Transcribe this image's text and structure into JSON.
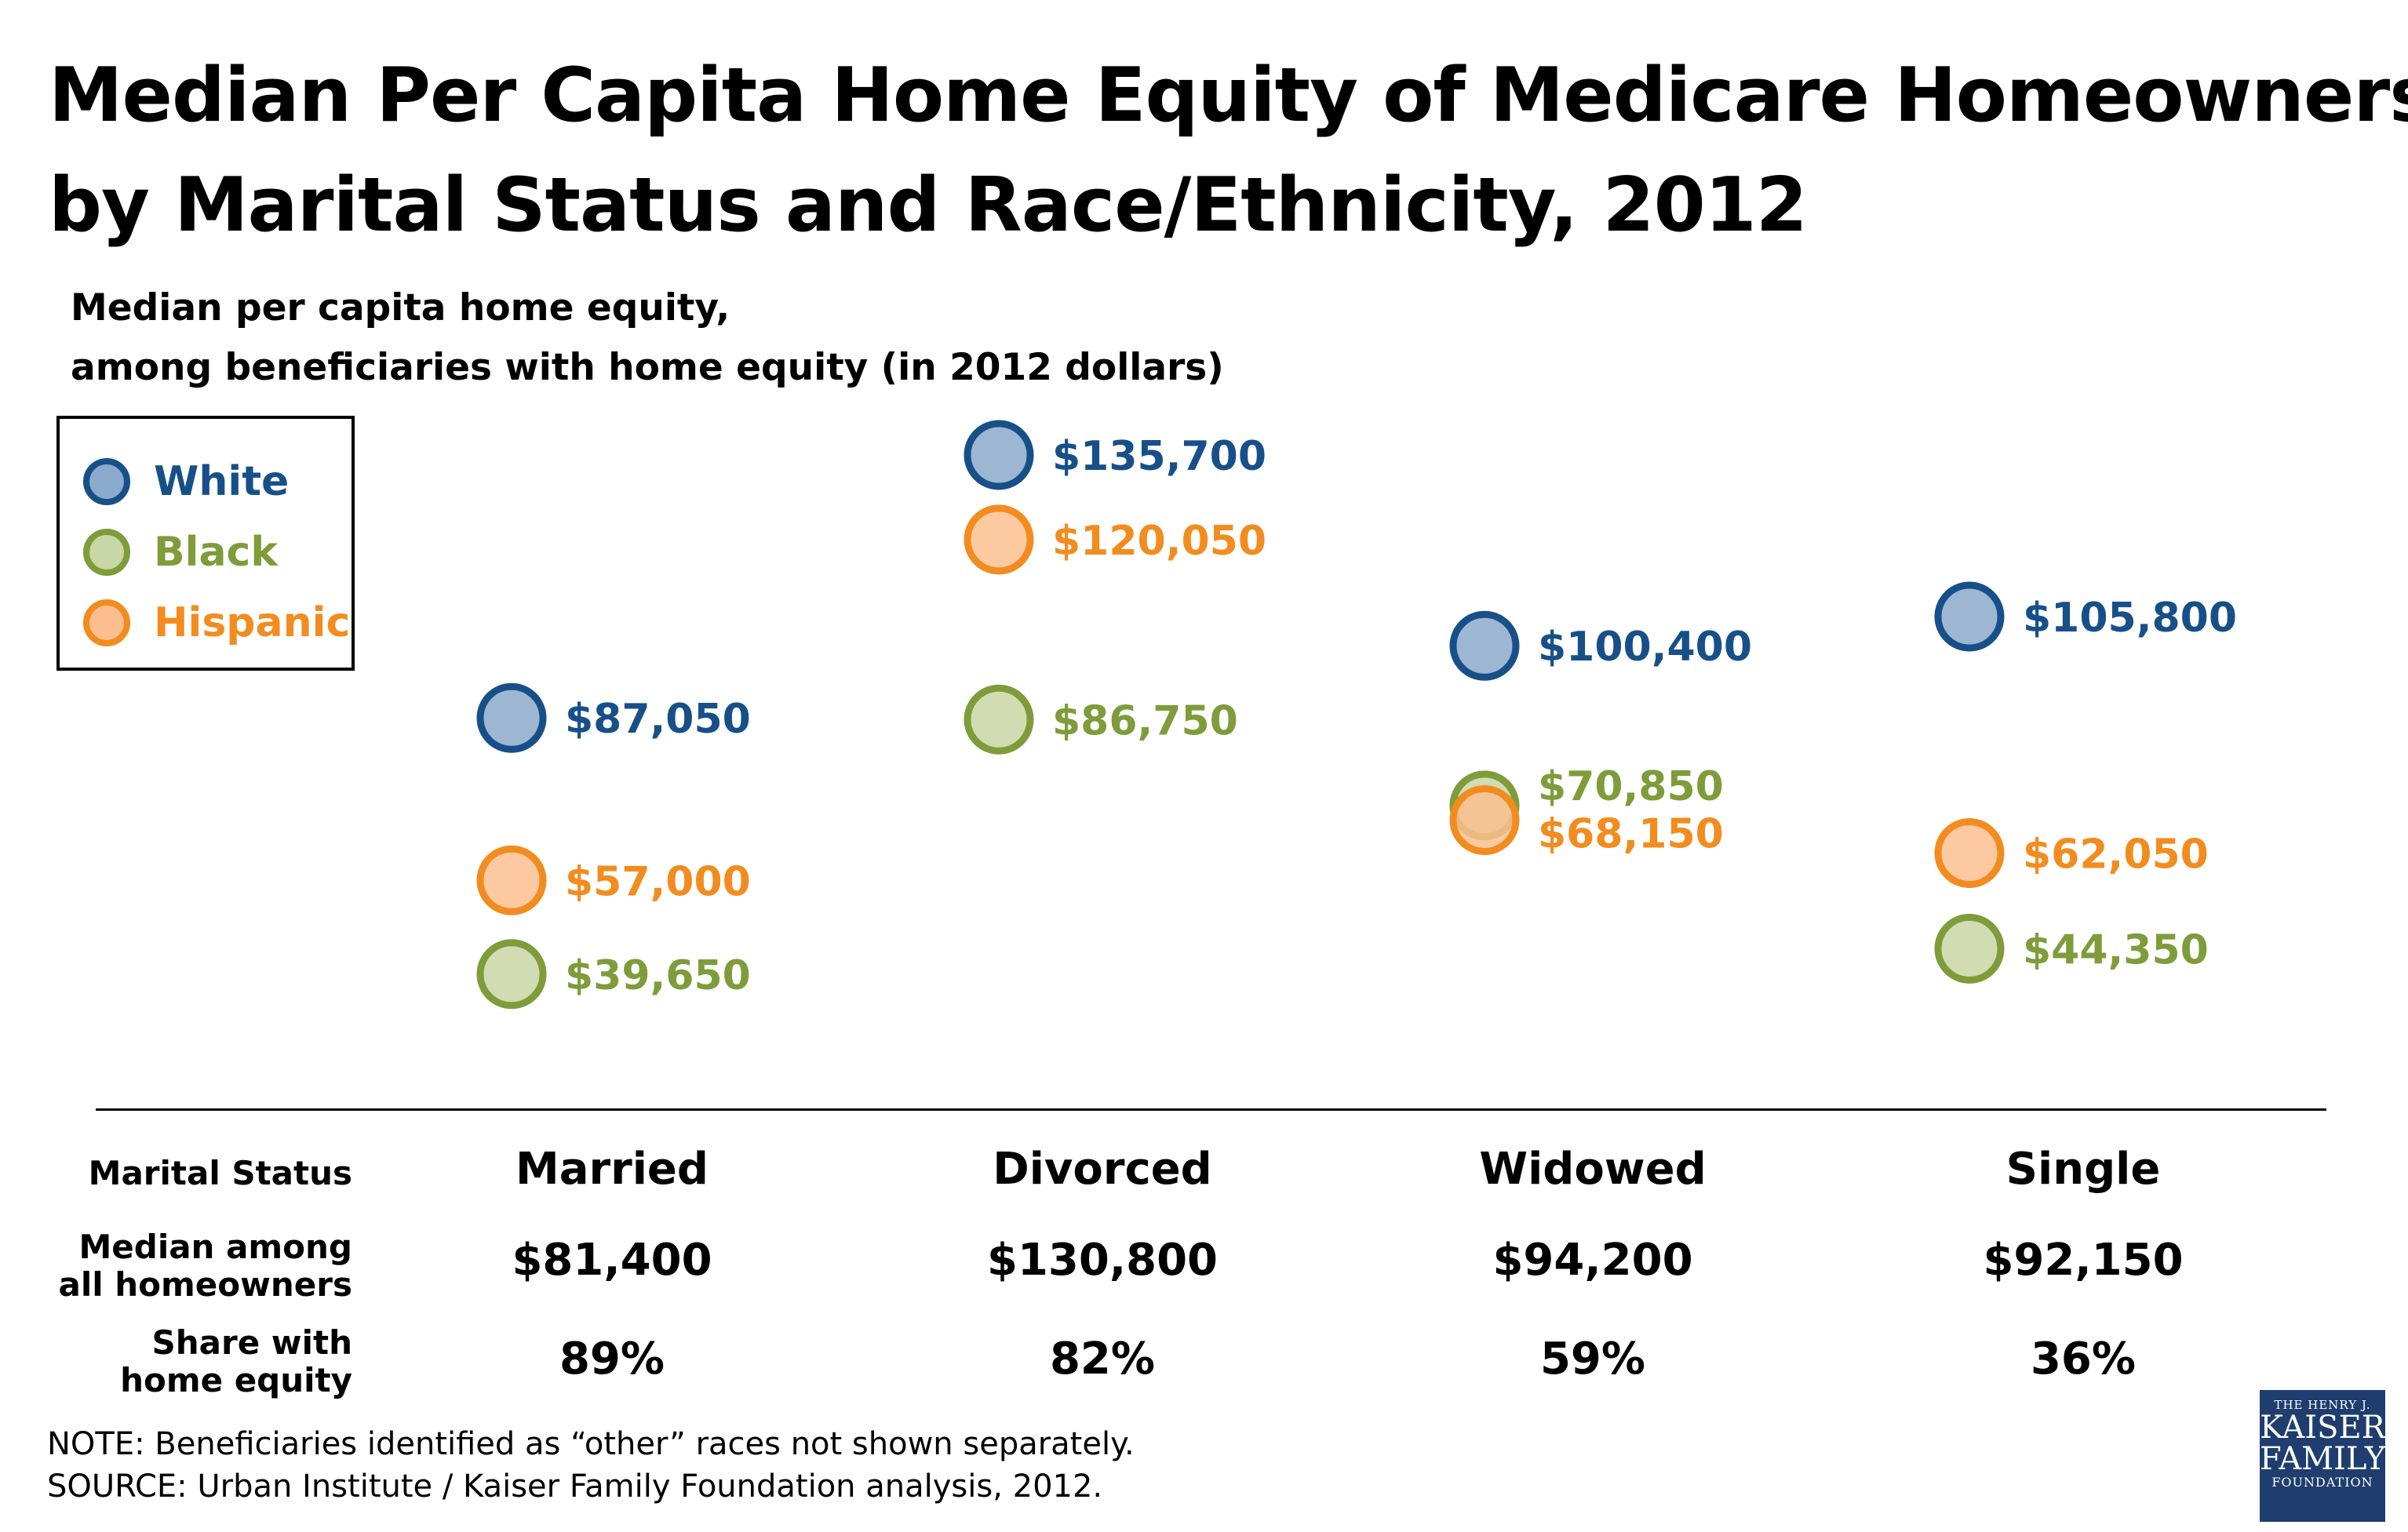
{
  "title_line1": "Median Per Capita Home Equity of Medicare Homeowners,",
  "title_line2": "by Marital Status and Race/Ethnicity, 2012",
  "subtitle_line1": "Median per capita home equity,",
  "subtitle_line2": "among beneficiaries with home equity (in 2012 dollars)",
  "legend": [
    {
      "name": "White",
      "stroke": "#175089",
      "fill": "#8caacb"
    },
    {
      "name": "Black",
      "stroke": "#7e9c3a",
      "fill": "#c9d6a6"
    },
    {
      "name": "Hispanic",
      "stroke": "#f28c1f",
      "fill": "#fbbf8f"
    }
  ],
  "chart_data": {
    "type": "scatter",
    "categories": [
      "Married",
      "Divorced",
      "Widowed",
      "Single"
    ],
    "series": [
      {
        "name": "White",
        "values": [
          87050,
          135700,
          100400,
          105800
        ],
        "labels": [
          "$87,050",
          "$135,700",
          "$100,400",
          "$105,800"
        ]
      },
      {
        "name": "Black",
        "values": [
          39650,
          86750,
          70850,
          44350
        ],
        "labels": [
          "$39,650",
          "$86,750",
          "$70,850",
          "$44,350"
        ]
      },
      {
        "name": "Hispanic",
        "values": [
          57000,
          120050,
          68150,
          62050
        ],
        "labels": [
          "$57,000",
          "$120,050",
          "$68,150",
          "$62,050"
        ]
      }
    ],
    "grid": false,
    "legend_position": "top-left"
  },
  "table": {
    "row_labels": {
      "marital_status": "Marital Status",
      "median_line1": "Median among",
      "median_line2": "all homeowners",
      "share_line1": "Share with",
      "share_line2": "home equity"
    },
    "columns": [
      {
        "status": "Married",
        "median": "$81,400",
        "share": "89%"
      },
      {
        "status": "Divorced",
        "median": "$130,800",
        "share": "82%"
      },
      {
        "status": "Widowed",
        "median": "$94,200",
        "share": "59%"
      },
      {
        "status": "Single",
        "median": "$92,150",
        "share": "36%"
      }
    ]
  },
  "note": "NOTE: Beneficiaries identified as “other” races not shown separately.",
  "source": "SOURCE: Urban Institute / Kaiser Family Foundation analysis, 2012.",
  "logo": {
    "line1": "THE HENRY J.",
    "line2": "KAISER",
    "line3": "FAMILY",
    "line4": "FOUNDATION"
  }
}
